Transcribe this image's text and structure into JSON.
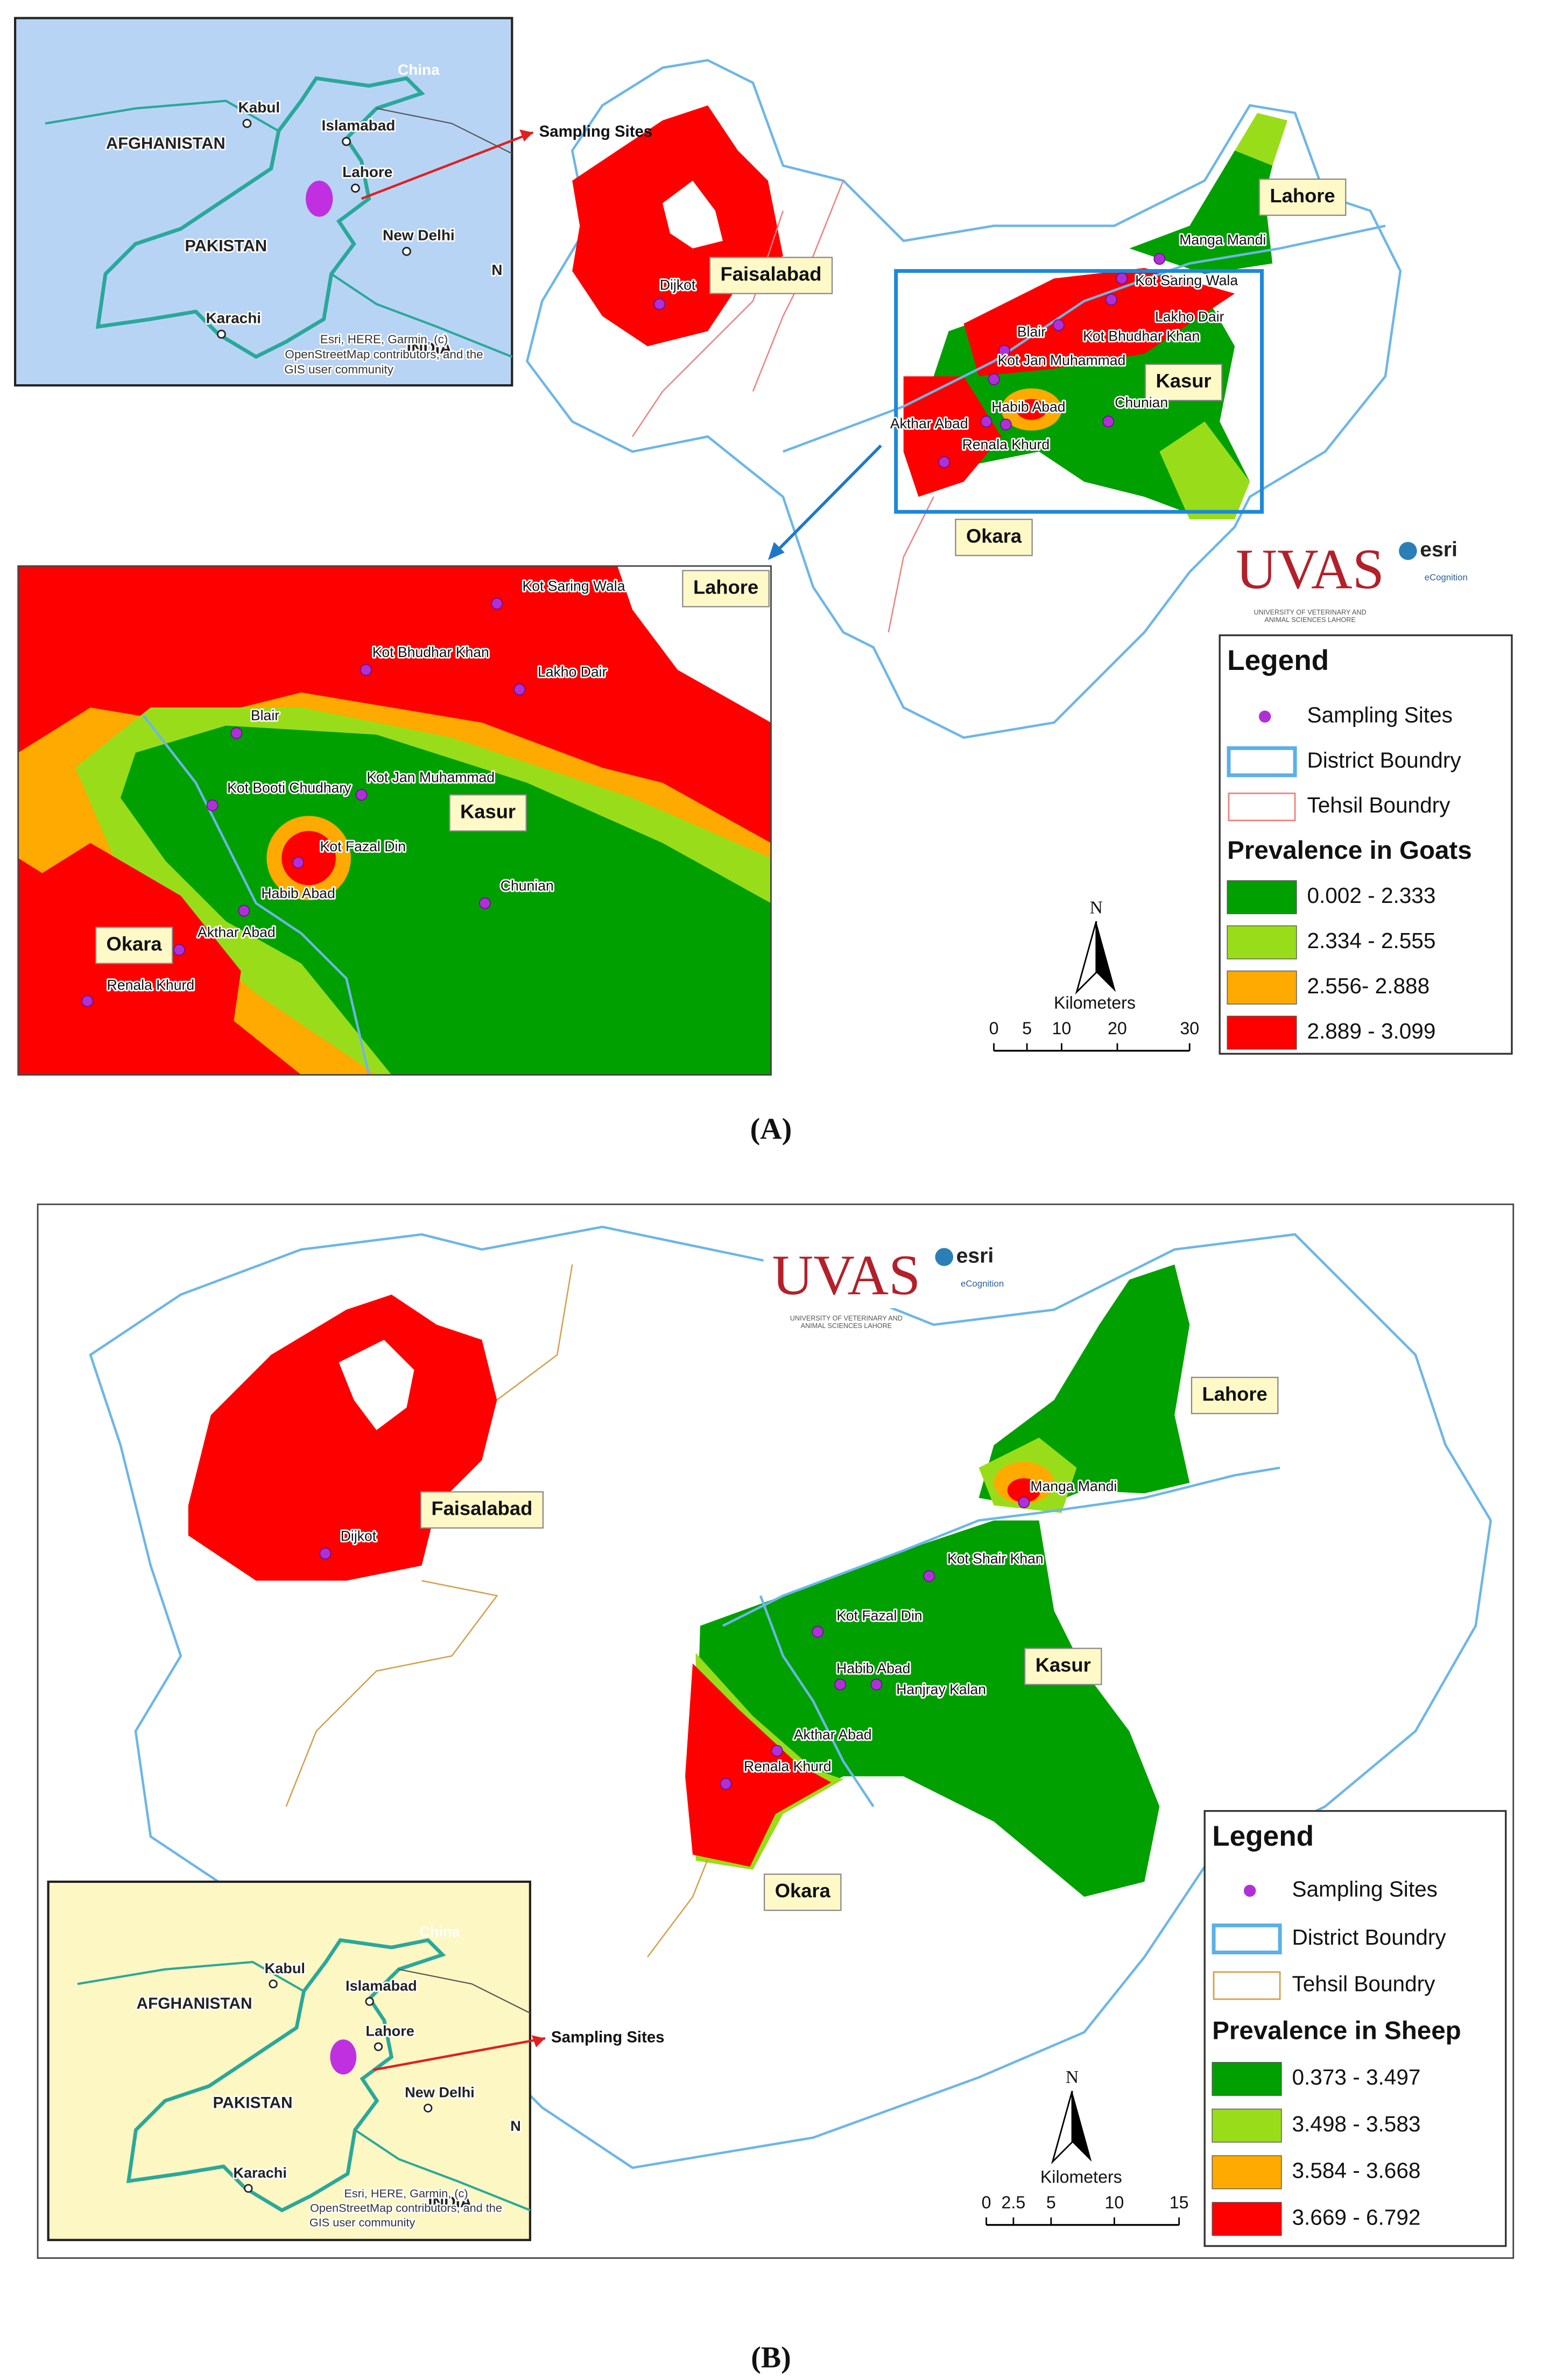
{
  "panel_a": {
    "caption": "(A)",
    "inset": {
      "labels": [
        "China",
        "Kabul",
        "Islamabad",
        "AFGHANISTAN",
        "Lahore",
        "PAKISTAN",
        "New Delhi",
        "N",
        "Karachi",
        "INDIA"
      ],
      "attribution": [
        "Esri, HERE, Garmin, (c)",
        "OpenStreetMap contributors, and the",
        "GIS user community"
      ]
    },
    "arrow_label": "Sampling Sites",
    "districts": [
      "Faisalabad",
      "Lahore",
      "Kasur",
      "Okara"
    ],
    "sites": [
      "Dijkot",
      "Manga Mandi",
      "Kot Saring Wala",
      "Lakho Dair",
      "Kot Bhudhar Khan",
      "Blair",
      "Kot Jan Muhammad",
      "Habib Abad",
      "Akthar Abad",
      "Chunian",
      "Renala Khurd"
    ],
    "zoom": {
      "districts": [
        "Lahore",
        "Kasur",
        "Okara"
      ],
      "sites": [
        "Kot Saring Wala",
        "Kot Bhudhar Khan",
        "Lakho Dair",
        "Blair",
        "Kot Booti Chudhary",
        "Kot Jan Muhammad",
        "Kot Fazal Din",
        "Chunian",
        "Habib Abad",
        "Akthar Abad",
        "Renala Khurd"
      ]
    },
    "logo": {
      "name": "UVAS",
      "subtitle": [
        "UNIVERSITY OF VETERINARY AND",
        "ANIMAL SCIENCES LAHORE"
      ],
      "partners": [
        "esri",
        "eCognition"
      ]
    },
    "legend": {
      "title": "Legend",
      "items": [
        "Sampling Sites",
        "District Boundry",
        "Tehsil Boundry"
      ],
      "tehsil_color": "#f08080",
      "prevalence_title": "Prevalence in Goats",
      "classes": [
        {
          "label": "0.002 - 2.333",
          "color": "#00a000"
        },
        {
          "label": "2.334 - 2.555",
          "color": "#99dd1a"
        },
        {
          "label": "2.556- 2.888",
          "color": "#ffaa00"
        },
        {
          "label": "2.889 - 3.099",
          "color": "#ff0000"
        }
      ]
    },
    "scale": {
      "north": "N",
      "unit": "Kilometers",
      "ticks": [
        "0",
        "5",
        "10",
        "20",
        "30"
      ]
    }
  },
  "panel_b": {
    "caption": "(B)",
    "inset": {
      "labels": [
        "China",
        "Kabul",
        "Islamabad",
        "AFGHANISTAN",
        "Lahore",
        "PAKISTAN",
        "New Delhi",
        "N",
        "Karachi",
        "INDIA"
      ],
      "attribution": [
        "Esri, HERE, Garmin, (c)",
        "OpenStreetMap contributors, and the",
        "GIS user community"
      ]
    },
    "arrow_label": "Sampling Sites",
    "districts": [
      "Lahore",
      "Faisalabad",
      "Kasur",
      "Okara"
    ],
    "sites": [
      "Manga Mandi",
      "Kot Shair Khan",
      "Kot Fazal Din",
      "Habib Abad",
      "Hanjray Kalan",
      "Akthar Abad",
      "Renala Khurd",
      "Dijkot"
    ],
    "logo": {
      "name": "UVAS",
      "subtitle": [
        "UNIVERSITY OF VETERINARY AND",
        "ANIMAL SCIENCES LAHORE"
      ],
      "partners": [
        "esri",
        "eCognition"
      ]
    },
    "legend": {
      "title": "Legend",
      "items": [
        "Sampling Sites",
        "District Boundry",
        "Tehsil Boundry"
      ],
      "tehsil_color": "#d4a04a",
      "prevalence_title": "Prevalence in Sheep",
      "classes": [
        {
          "label": "0.373 - 3.497",
          "color": "#00a000"
        },
        {
          "label": "3.498 - 3.583",
          "color": "#99dd1a"
        },
        {
          "label": "3.584 - 3.668",
          "color": "#ffaa00"
        },
        {
          "label": "3.669 - 6.792",
          "color": "#ff0000"
        }
      ]
    },
    "scale": {
      "north": "N",
      "unit": "Kilometers",
      "ticks": [
        "0",
        "2.5",
        "5",
        "10",
        "15"
      ]
    }
  }
}
